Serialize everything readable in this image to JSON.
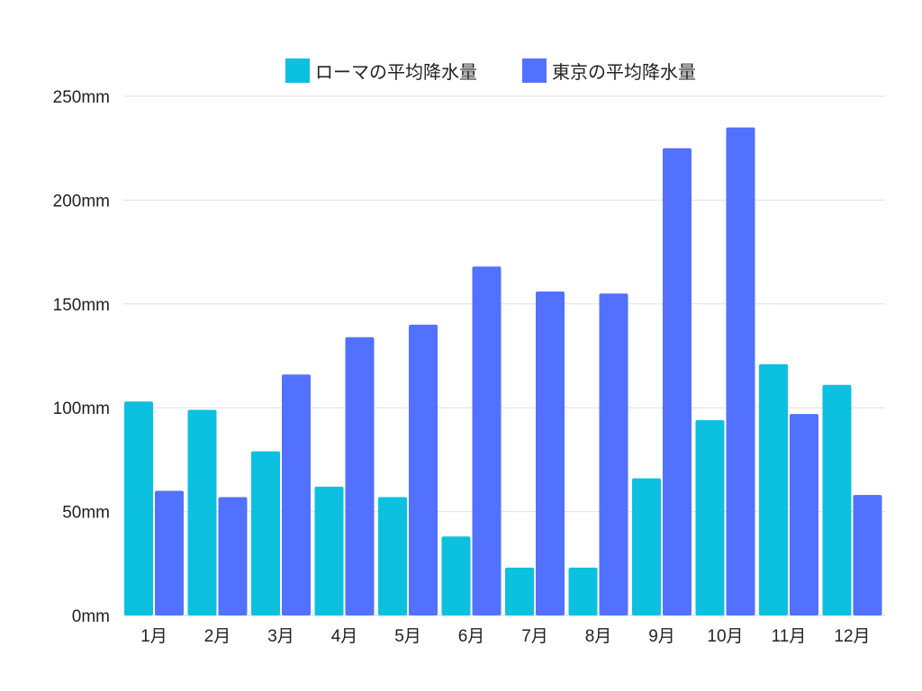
{
  "chart_data": {
    "type": "bar",
    "title": "",
    "xlabel": "",
    "ylabel": "",
    "categories": [
      "1月",
      "2月",
      "3月",
      "4月",
      "5月",
      "6月",
      "7月",
      "8月",
      "9月",
      "10月",
      "11月",
      "12月"
    ],
    "series": [
      {
        "name": "ローマの平均降水量",
        "color": "#0cc0df",
        "values": [
          103,
          99,
          79,
          62,
          57,
          38,
          23,
          23,
          66,
          94,
          121,
          111
        ]
      },
      {
        "name": "東京の平均降水量",
        "color": "#5271ff",
        "values": [
          60,
          57,
          116,
          134,
          140,
          168,
          156,
          155,
          225,
          235,
          97,
          58
        ]
      }
    ],
    "ylim": [
      0,
      250
    ],
    "yticks": [
      0,
      50,
      100,
      150,
      200,
      250
    ],
    "ytick_labels": [
      "0mm",
      "50mm",
      "100mm",
      "150mm",
      "200mm",
      "250mm"
    ],
    "grid": true,
    "legend_position": "top-center",
    "gridline_color": "#e0e0e0"
  }
}
